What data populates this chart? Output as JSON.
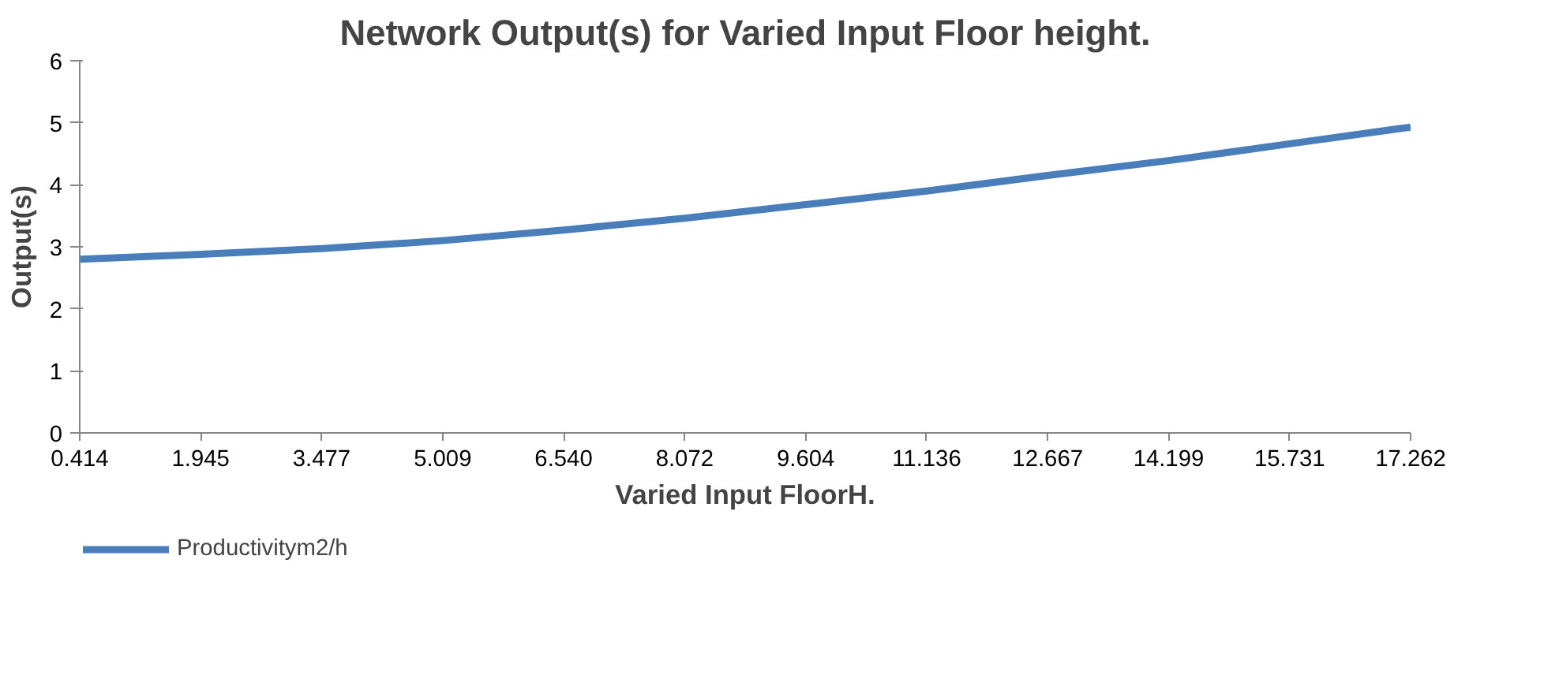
{
  "chart_data": {
    "type": "line",
    "title": "Network Output(s) for Varied Input Floor height.",
    "xlabel": "Varied Input FloorH.",
    "ylabel": "Output(s)",
    "x": [
      0.414,
      1.945,
      3.477,
      5.009,
      6.54,
      8.072,
      9.604,
      11.136,
      12.667,
      14.199,
      15.731,
      17.262
    ],
    "series": [
      {
        "name": "Productivitym2/h",
        "color": "#4a7ebb",
        "values": [
          2.8,
          2.88,
          2.97,
          3.1,
          3.27,
          3.46,
          3.68,
          3.9,
          4.15,
          4.39,
          4.66,
          4.93
        ]
      }
    ],
    "xlim": [
      0.414,
      17.262
    ],
    "xticks": [
      {
        "value": 0.414,
        "label": "0.414"
      },
      {
        "value": 1.945,
        "label": "1.945"
      },
      {
        "value": 3.477,
        "label": "3.477"
      },
      {
        "value": 5.009,
        "label": "5.009"
      },
      {
        "value": 6.54,
        "label": "6.540"
      },
      {
        "value": 8.072,
        "label": "8.072"
      },
      {
        "value": 9.604,
        "label": "9.604"
      },
      {
        "value": 11.136,
        "label": "11.136"
      },
      {
        "value": 12.667,
        "label": "12.667"
      },
      {
        "value": 14.199,
        "label": "14.199"
      },
      {
        "value": 15.731,
        "label": "15.731"
      },
      {
        "value": 17.262,
        "label": "17.262"
      }
    ],
    "ylim": [
      0,
      6
    ],
    "yticks": [
      0,
      1,
      2,
      3,
      4,
      5,
      6
    ],
    "grid": false,
    "legend": "bottom left",
    "marker": "none",
    "line_style": "solid"
  }
}
